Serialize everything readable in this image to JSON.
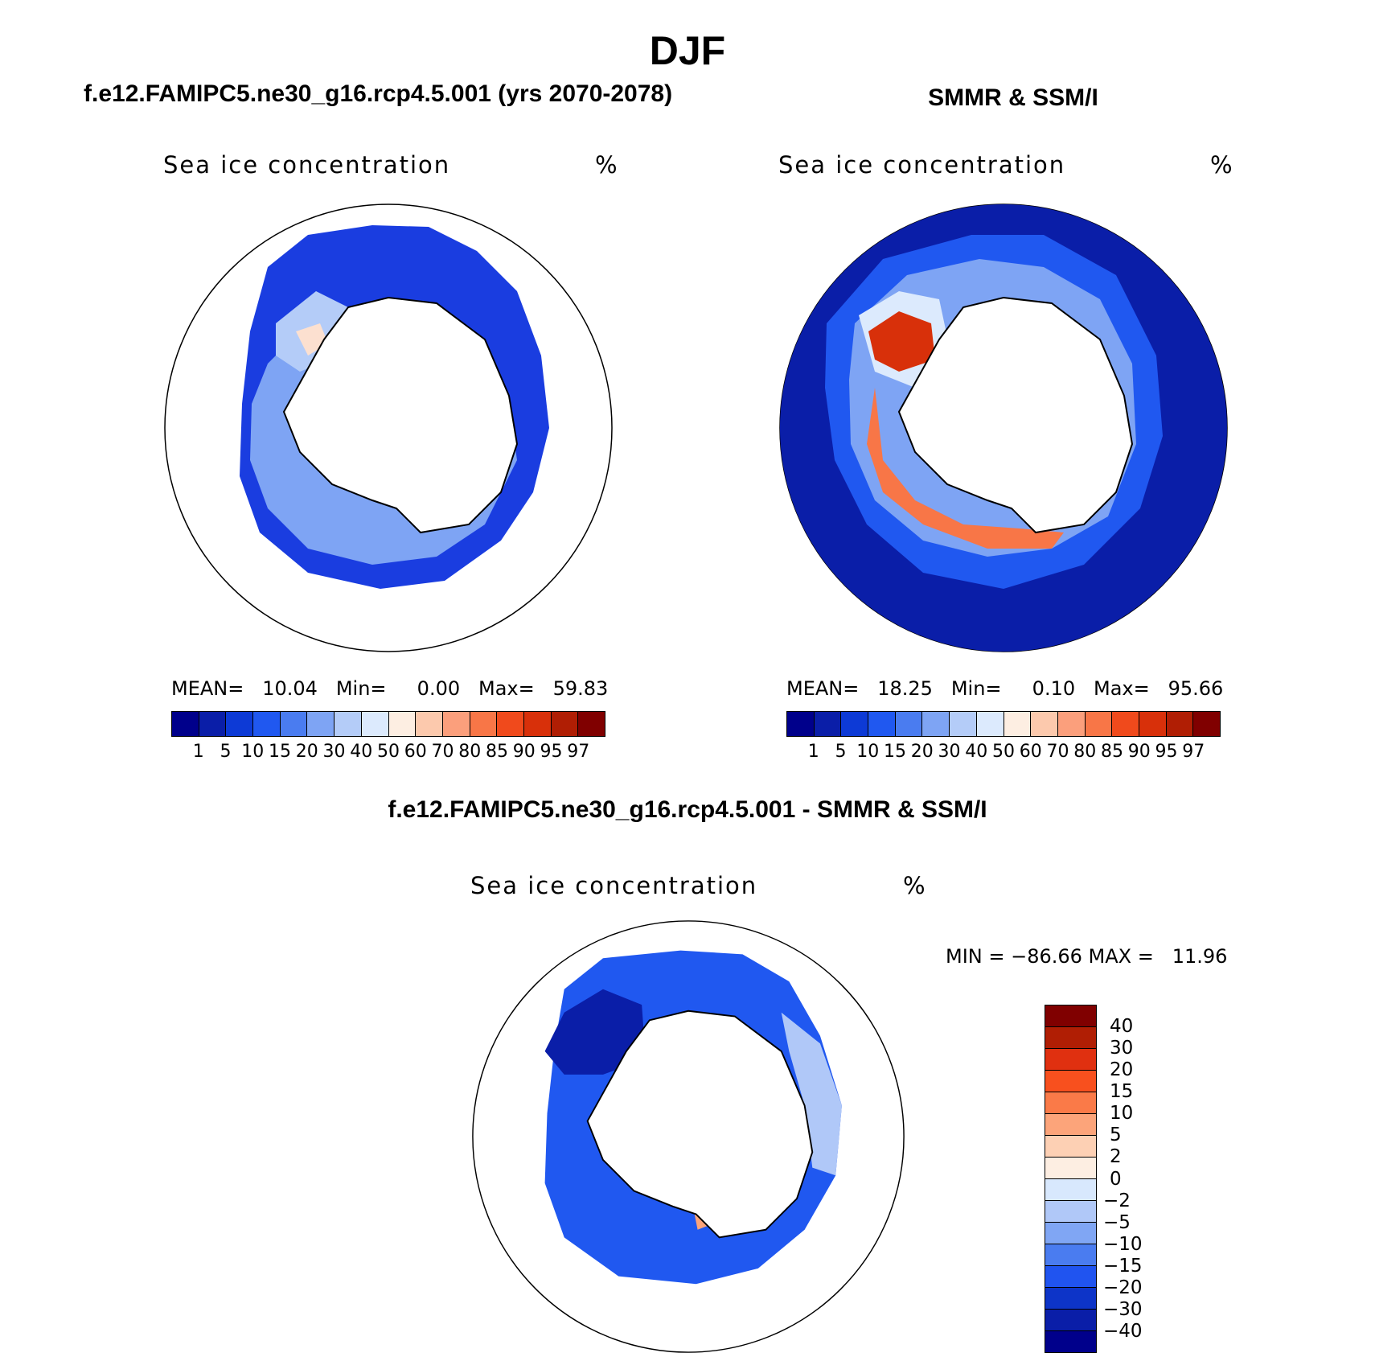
{
  "title": "DJF",
  "panels": [
    {
      "title": "f.e12.FAMIPC5.ne30_g16.rcp4.5.001 (yrs 2070-2078)",
      "subtitle": "Sea ice concentration",
      "unit": "%",
      "stats": "MEAN=   10.04   Min=     0.00   Max=   59.83",
      "mean": 10.04,
      "min": 0.0,
      "max": 59.83
    },
    {
      "title": "SMMR & SSM/I",
      "subtitle": "Sea ice concentration",
      "unit": "%",
      "stats": "MEAN=   18.25   Min=     0.10   Max=   95.66",
      "mean": 18.25,
      "min": 0.1,
      "max": 95.66
    }
  ],
  "diff_panel": {
    "title": "f.e12.FAMIPC5.ne30_g16.rcp4.5.001 - SMMR & SSM/I",
    "subtitle": "Sea ice concentration",
    "unit": "%",
    "stats": "MIN = −86.66 MAX =   11.96",
    "min": -86.66,
    "max": 11.96
  },
  "abs_colorbar": {
    "labels": [
      "1",
      "5",
      "10",
      "15",
      "20",
      "30",
      "40",
      "50",
      "60",
      "70",
      "80",
      "85",
      "90",
      "95",
      "97"
    ],
    "colors": [
      "#00008b",
      "#0a1ea8",
      "#0d3ad6",
      "#2058f0",
      "#4a7cf0",
      "#7ea4f4",
      "#b4ccf8",
      "#dceafd",
      "#fdeee2",
      "#fcc9ad",
      "#fb9f7c",
      "#f87647",
      "#f04a1c",
      "#d8300a",
      "#b01e04",
      "#800000"
    ]
  },
  "diff_colorbar": {
    "labels": [
      "40",
      "30",
      "20",
      "15",
      "10",
      "5",
      "2",
      "0",
      "−2",
      "−5",
      "−10",
      "−15",
      "−20",
      "−30",
      "−40"
    ],
    "colors": [
      "#800000",
      "#b01e04",
      "#e03010",
      "#f8501e",
      "#fa7a48",
      "#fca47a",
      "#fdd0b4",
      "#fdeee2",
      "#d8e8fd",
      "#b0c8f8",
      "#80a6f4",
      "#4a7cf0",
      "#2054f0",
      "#0d34c8",
      "#0a1ea8",
      "#00008b"
    ]
  }
}
